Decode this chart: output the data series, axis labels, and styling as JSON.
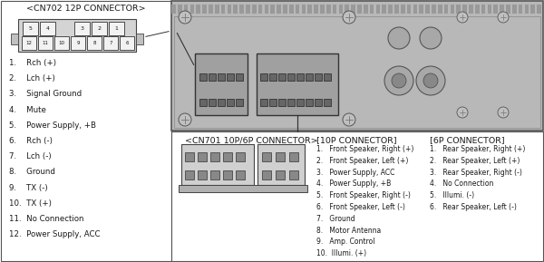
{
  "title_cn702": "<CN702 12P CONNECTOR>",
  "cn702_list": [
    "1.    Rch (+)",
    "2.    Lch (+)",
    "3.    Signal Ground",
    "4.    Mute",
    "5.    Power Supply, +B",
    "6.    Rch (-)",
    "7.    Lch (-)",
    "8.    Ground",
    "9.    TX (-)",
    "10.  TX (+)",
    "11.  No Connection",
    "12.  Power Supply, ACC"
  ],
  "title_cn701": "<CN701 10P/6P CONNECTOR>",
  "title_10p": "[10P CONNECTOR]",
  "pin10p_list": [
    "1.   Front Speaker, Right (+)",
    "2.   Front Speaker, Left (+)",
    "3.   Power Supply, ACC",
    "4.   Power Supply, +B",
    "5.   Front Speaker, Right (-)",
    "6.   Front Speaker, Left (-)",
    "7.   Ground",
    "8.   Motor Antenna",
    "9.   Amp. Control",
    "10.  Illumi. (+)"
  ],
  "title_6p": "[6P CONNECTOR]",
  "pin6p_list": [
    "1.   Rear Speaker, Right (+)",
    "2.   Rear Speaker, Left (+)",
    "3.   Rear Speaker, Right (-)",
    "4.   No Connection",
    "5.   Illumi. (-)",
    "6.   Rear Speaker, Left (-)"
  ],
  "text_color": "#1a1a1a",
  "font_size_small": 5.5,
  "font_size_med": 6.2,
  "font_size_title": 6.8
}
